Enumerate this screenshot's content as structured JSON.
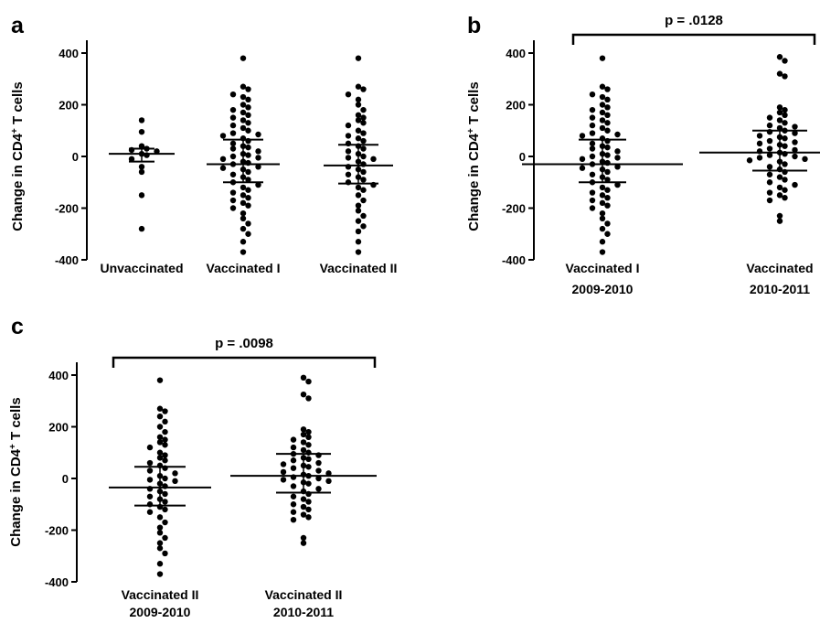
{
  "chart_data": [
    {
      "panel": "a",
      "type": "scatter",
      "ylabel": "Change in CD4",
      "ylabel_sup": "+",
      "ylabel_suffix": " T cells",
      "ylim": [
        -400,
        400
      ],
      "yticks": [
        400,
        200,
        0,
        -200,
        -400
      ],
      "groups": [
        {
          "label": [
            "Unvaccinated"
          ],
          "mean": 10,
          "sd_upper": 30,
          "sd_lower": -20,
          "values": [
            140,
            95,
            40,
            30,
            25,
            20,
            10,
            5,
            -10,
            -40,
            -60,
            -150,
            -280
          ]
        },
        {
          "label": [
            "Vaccinated I"
          ],
          "mean": -30,
          "sd_upper": 65,
          "sd_lower": -100,
          "values": [
            380,
            270,
            260,
            240,
            230,
            220,
            200,
            190,
            180,
            170,
            160,
            150,
            140,
            130,
            120,
            110,
            100,
            90,
            85,
            80,
            70,
            60,
            50,
            40,
            35,
            30,
            20,
            10,
            5,
            0,
            -5,
            -10,
            -20,
            -25,
            -30,
            -40,
            -45,
            -50,
            -60,
            -70,
            -80,
            -90,
            -100,
            -110,
            -120,
            -130,
            -140,
            -150,
            -160,
            -170,
            -180,
            -190,
            -200,
            -220,
            -240,
            -260,
            -280,
            -300,
            -330,
            -370
          ]
        },
        {
          "label": [
            "Vaccinated II"
          ],
          "mean": -35,
          "sd_upper": 45,
          "sd_lower": -105,
          "values": [
            380,
            270,
            260,
            240,
            220,
            200,
            180,
            160,
            150,
            140,
            130,
            120,
            100,
            90,
            80,
            70,
            60,
            50,
            40,
            30,
            20,
            10,
            0,
            -5,
            -10,
            -20,
            -30,
            -40,
            -50,
            -60,
            -70,
            -80,
            -90,
            -100,
            -110,
            -120,
            -130,
            -150,
            -170,
            -190,
            -210,
            -230,
            -250,
            -270,
            -290,
            -330,
            -370
          ]
        }
      ]
    },
    {
      "panel": "b",
      "type": "scatter",
      "ylabel": "Change in CD4",
      "ylabel_sup": "+",
      "ylabel_suffix": " T cells",
      "ylim": [
        -400,
        400
      ],
      "yticks": [
        400,
        200,
        0,
        -200,
        -400
      ],
      "p_value": "p = .0128",
      "groups": [
        {
          "label": [
            "Vaccinated I",
            "2009-2010"
          ],
          "mean": -30,
          "sd_upper": 65,
          "sd_lower": -100,
          "values": [
            380,
            270,
            260,
            240,
            230,
            220,
            200,
            190,
            180,
            170,
            160,
            150,
            140,
            130,
            120,
            110,
            100,
            90,
            85,
            80,
            70,
            60,
            50,
            40,
            35,
            30,
            20,
            10,
            5,
            0,
            -5,
            -10,
            -20,
            -25,
            -30,
            -40,
            -45,
            -50,
            -60,
            -70,
            -80,
            -90,
            -100,
            -110,
            -120,
            -130,
            -140,
            -150,
            -160,
            -170,
            -180,
            -190,
            -200,
            -220,
            -240,
            -260,
            -280,
            -300,
            -330,
            -370
          ]
        },
        {
          "label": [
            "Vaccinated",
            "2010-2011"
          ],
          "mean": 15,
          "sd_upper": 100,
          "sd_lower": -55,
          "values": [
            385,
            370,
            320,
            310,
            190,
            180,
            170,
            160,
            150,
            140,
            130,
            120,
            115,
            110,
            100,
            95,
            90,
            80,
            75,
            70,
            60,
            55,
            50,
            45,
            40,
            30,
            25,
            20,
            15,
            10,
            5,
            0,
            -5,
            -10,
            -15,
            -20,
            -30,
            -40,
            -50,
            -60,
            -70,
            -80,
            -90,
            -100,
            -110,
            -120,
            -130,
            -140,
            -150,
            -160,
            -170,
            -230,
            -250
          ]
        }
      ]
    },
    {
      "panel": "c",
      "type": "scatter",
      "ylabel": "Change in CD4",
      "ylabel_sup": "+",
      "ylabel_suffix": " T cells",
      "ylim": [
        -400,
        400
      ],
      "yticks": [
        400,
        200,
        0,
        -200,
        -400
      ],
      "p_value": "p = .0098",
      "groups": [
        {
          "label": [
            "Vaccinated II",
            "2009-2010"
          ],
          "mean": -35,
          "sd_upper": 45,
          "sd_lower": -105,
          "values": [
            380,
            270,
            260,
            240,
            220,
            200,
            180,
            160,
            150,
            140,
            130,
            120,
            100,
            90,
            80,
            70,
            60,
            50,
            40,
            30,
            20,
            10,
            0,
            -5,
            -10,
            -20,
            -30,
            -40,
            -50,
            -60,
            -70,
            -80,
            -90,
            -100,
            -110,
            -120,
            -130,
            -150,
            -170,
            -190,
            -210,
            -230,
            -250,
            -270,
            -290,
            -330,
            -370
          ]
        },
        {
          "label": [
            "Vaccinated II",
            "2010-2011"
          ],
          "mean": 10,
          "sd_upper": 95,
          "sd_lower": -55,
          "values": [
            390,
            375,
            325,
            310,
            190,
            180,
            170,
            160,
            150,
            140,
            130,
            120,
            110,
            100,
            95,
            90,
            80,
            75,
            70,
            60,
            55,
            50,
            45,
            40,
            30,
            25,
            20,
            15,
            10,
            5,
            0,
            -5,
            -10,
            -15,
            -20,
            -30,
            -40,
            -50,
            -60,
            -70,
            -80,
            -90,
            -100,
            -110,
            -120,
            -130,
            -140,
            -150,
            -160,
            -230,
            -250
          ]
        }
      ]
    }
  ],
  "colors": {
    "marker": "#000000",
    "axis": "#000000",
    "background": "#ffffff"
  }
}
